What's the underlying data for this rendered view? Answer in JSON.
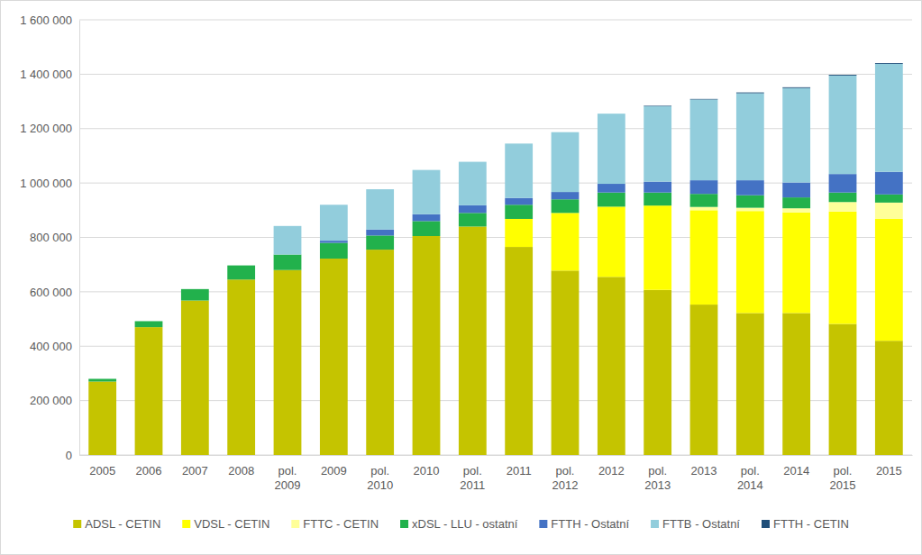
{
  "chart_data": {
    "type": "bar",
    "stacked": true,
    "grid": true,
    "legend": "bottom",
    "categories": [
      "2005",
      "2006",
      "2007",
      "2008",
      "pol. 2009",
      "2009",
      "pol. 2010",
      "2010",
      "pol. 2011",
      "2011",
      "pol. 2012",
      "2012",
      "pol. 2013",
      "2013",
      "pol. 2014",
      "2014",
      "pol. 2015",
      "2015"
    ],
    "ylim": [
      0,
      1600000
    ],
    "yticks": [
      0,
      {
        "value": 200000,
        "label": "200 000"
      },
      {
        "value": 400000,
        "label": "400 000"
      },
      {
        "value": 600000,
        "label": "600 000"
      },
      {
        "value": 800000,
        "label": "800 000"
      },
      {
        "value": 1000000,
        "label": "1 000 000"
      },
      {
        "value": 1200000,
        "label": "1 200 000"
      },
      {
        "value": 1400000,
        "label": "1 400 000"
      },
      {
        "value": 1600000,
        "label": "1 600 000"
      }
    ],
    "series": [
      {
        "name": "ADSL - CETIN",
        "color": "#c5c400",
        "values": [
          270000,
          470000,
          568000,
          645000,
          680000,
          722000,
          755000,
          805000,
          840000,
          765000,
          678000,
          655000,
          607000,
          553000,
          522000,
          522000,
          482000,
          420000
        ]
      },
      {
        "name": "VDSL - CETIN",
        "color": "#ffff00",
        "values": [
          0,
          0,
          0,
          0,
          0,
          0,
          0,
          0,
          0,
          103000,
          212000,
          258000,
          310000,
          347000,
          375000,
          370000,
          413000,
          448000
        ]
      },
      {
        "name": "FTTC - CETIN",
        "color": "#ffff99",
        "values": [
          0,
          0,
          0,
          0,
          0,
          0,
          0,
          0,
          0,
          0,
          0,
          0,
          0,
          12000,
          12000,
          15000,
          35000,
          60000
        ]
      },
      {
        "name": "xDSL - LLU - ostatní",
        "color": "#22b14c",
        "values": [
          10000,
          22000,
          42000,
          52000,
          57000,
          58000,
          52000,
          55000,
          50000,
          52000,
          50000,
          52000,
          48000,
          48000,
          46000,
          40000,
          35000,
          30000
        ]
      },
      {
        "name": "FTTH - Ostatní",
        "color": "#4472c4",
        "values": [
          0,
          0,
          0,
          0,
          0,
          8000,
          22000,
          25000,
          28000,
          25000,
          27000,
          32000,
          40000,
          50000,
          55000,
          55000,
          68000,
          83000
        ]
      },
      {
        "name": "FTTB - Ostatní",
        "color": "#92cddc",
        "values": [
          0,
          0,
          0,
          0,
          105000,
          132000,
          148000,
          163000,
          160000,
          200000,
          220000,
          258000,
          277000,
          297000,
          320000,
          347000,
          362000,
          397000
        ]
      },
      {
        "name": "FTTH - CETIN",
        "color": "#1f4e79",
        "values": [
          0,
          0,
          0,
          0,
          0,
          0,
          0,
          0,
          0,
          0,
          0,
          0,
          2000,
          2000,
          3000,
          3000,
          3000,
          3000
        ]
      }
    ]
  }
}
